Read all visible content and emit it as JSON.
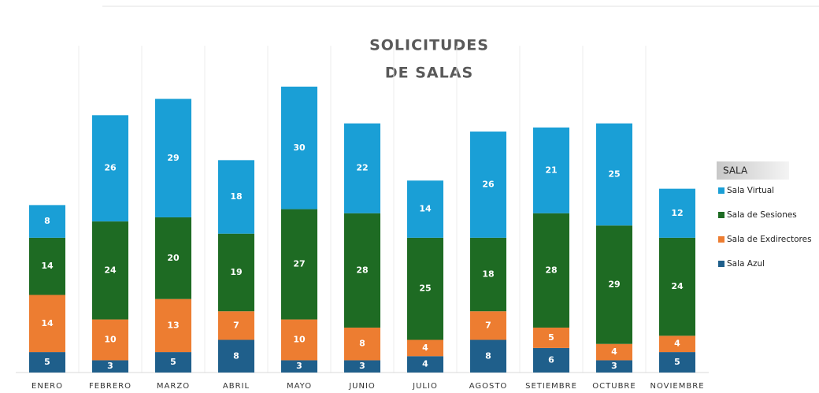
{
  "chart_data": {
    "type": "stacked_bar",
    "title": [
      "SOLICITUDES",
      "DE SALAS"
    ],
    "categories": [
      "ENERO",
      "FEBRERO",
      "MARZO",
      "ABRIL",
      "MAYO",
      "JUNIO",
      "JULIO",
      "AGOSTO",
      "SETIEMBRE",
      "OCTUBRE",
      "NOVIEMBRE"
    ],
    "legend_title": "SALA",
    "series": [
      {
        "name": "Sala Azul",
        "color": "#1f5f8b",
        "values": [
          5,
          3,
          5,
          8,
          3,
          3,
          4,
          8,
          6,
          3,
          5
        ]
      },
      {
        "name": "Sala de Exdirectores",
        "color": "#ed7d31",
        "values": [
          14,
          10,
          13,
          7,
          10,
          8,
          4,
          7,
          5,
          4,
          4
        ]
      },
      {
        "name": "Sala de Sesiones",
        "color": "#1e6b23",
        "values": [
          14,
          24,
          20,
          19,
          27,
          28,
          25,
          18,
          28,
          29,
          24
        ]
      },
      {
        "name": "Sala Virtual",
        "color": "#1a9fd6",
        "values": [
          8,
          26,
          29,
          18,
          30,
          22,
          14,
          26,
          21,
          25,
          12
        ]
      }
    ]
  }
}
